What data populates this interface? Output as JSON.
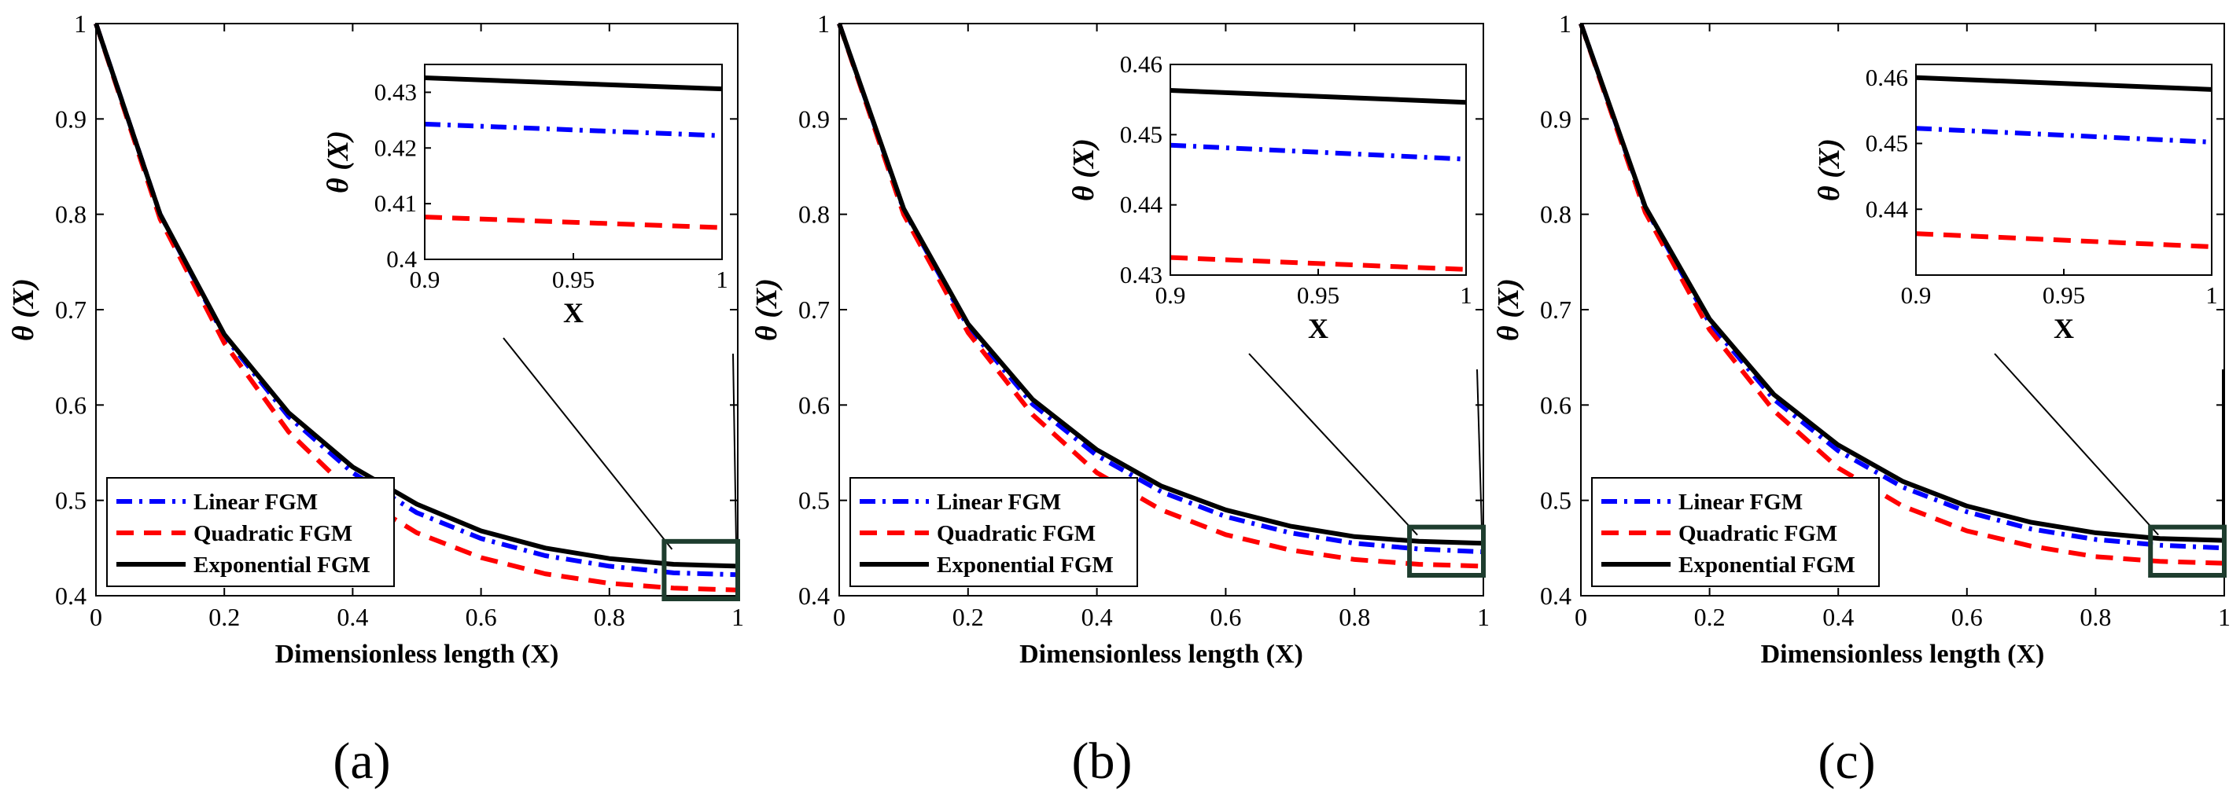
{
  "chart_data": [
    {
      "panel": "(a)",
      "type": "line",
      "xlabel": "Dimensionless length (X)",
      "ylabel": "θ (X)",
      "xlim": [
        0,
        1
      ],
      "ylim": [
        0.4,
        1
      ],
      "xticks": [
        "0",
        "0.2",
        "0.4",
        "0.6",
        "0.8",
        "1"
      ],
      "yticks": [
        "0.4",
        "0.5",
        "0.6",
        "0.7",
        "0.8",
        "0.9",
        "1"
      ],
      "x": [
        0,
        0.1,
        0.2,
        0.3,
        0.4,
        0.5,
        0.6,
        0.7,
        0.8,
        0.9,
        1.0
      ],
      "series": [
        {
          "name": "Linear FGM",
          "color": "#0000ff",
          "style": "dash-dot",
          "values": [
            1.0,
            0.8,
            0.672,
            0.588,
            0.529,
            0.487,
            0.46,
            0.442,
            0.431,
            0.424,
            0.422
          ]
        },
        {
          "name": "Quadratic FGM",
          "color": "#ff0000",
          "style": "dashed",
          "values": [
            1.0,
            0.795,
            0.665,
            0.572,
            0.507,
            0.466,
            0.44,
            0.423,
            0.413,
            0.408,
            0.406
          ]
        },
        {
          "name": "Exponential FGM",
          "color": "#000000",
          "style": "solid",
          "values": [
            1.0,
            0.8,
            0.674,
            0.592,
            0.535,
            0.496,
            0.468,
            0.45,
            0.439,
            0.433,
            0.431
          ]
        }
      ],
      "legend": "lower-left",
      "inset": {
        "xlim": [
          0.9,
          1
        ],
        "ylim": [
          0.4,
          0.435
        ],
        "xticks": [
          "0.9",
          "0.95",
          "1"
        ],
        "yticks": [
          "0.4",
          "0.41",
          "0.42",
          "0.43"
        ],
        "xlabel": "X",
        "ylabel": "θ (X)",
        "x": [
          0.9,
          1.0
        ],
        "values": [
          [
            0.4243,
            0.4222
          ],
          [
            0.4076,
            0.4057
          ],
          [
            0.4326,
            0.4306
          ]
        ]
      }
    },
    {
      "panel": "(b)",
      "type": "line",
      "xlabel": "Dimensionless length (X)",
      "ylabel": "θ (X)",
      "xlim": [
        0,
        1
      ],
      "ylim": [
        0.4,
        1
      ],
      "xticks": [
        "0",
        "0.2",
        "0.4",
        "0.6",
        "0.8",
        "1"
      ],
      "yticks": [
        "0.4",
        "0.5",
        "0.6",
        "0.7",
        "0.8",
        "0.9",
        "1"
      ],
      "x": [
        0,
        0.1,
        0.2,
        0.3,
        0.4,
        0.5,
        0.6,
        0.7,
        0.8,
        0.9,
        1.0
      ],
      "series": [
        {
          "name": "Linear FGM",
          "color": "#0000ff",
          "style": "dash-dot",
          "values": [
            1.0,
            0.805,
            0.682,
            0.601,
            0.547,
            0.509,
            0.483,
            0.466,
            0.455,
            0.449,
            0.446
          ]
        },
        {
          "name": "Quadratic FGM",
          "color": "#ff0000",
          "style": "dashed",
          "values": [
            1.0,
            0.8,
            0.676,
            0.59,
            0.529,
            0.49,
            0.464,
            0.448,
            0.438,
            0.433,
            0.431
          ]
        },
        {
          "name": "Exponential FGM",
          "color": "#000000",
          "style": "solid",
          "values": [
            1.0,
            0.806,
            0.685,
            0.606,
            0.553,
            0.515,
            0.49,
            0.473,
            0.462,
            0.457,
            0.455
          ]
        }
      ],
      "legend": "lower-left",
      "inset": {
        "xlim": [
          0.9,
          1
        ],
        "ylim": [
          0.43,
          0.46
        ],
        "xticks": [
          "0.9",
          "0.95",
          "1"
        ],
        "yticks": [
          "0.43",
          "0.44",
          "0.45",
          "0.46"
        ],
        "xlabel": "X",
        "ylabel": "θ (X)",
        "x": [
          0.9,
          1.0
        ],
        "values": [
          [
            0.4485,
            0.4465
          ],
          [
            0.4325,
            0.4308
          ],
          [
            0.4563,
            0.4546
          ]
        ]
      }
    },
    {
      "panel": "(c)",
      "type": "line",
      "xlabel": "Dimensionless length (X)",
      "ylabel": "θ (X)",
      "xlim": [
        0,
        1
      ],
      "ylim": [
        0.4,
        1
      ],
      "xticks": [
        "0",
        "0.2",
        "0.4",
        "0.6",
        "0.8",
        "1"
      ],
      "yticks": [
        "0.4",
        "0.5",
        "0.6",
        "0.7",
        "0.8",
        "0.9",
        "1"
      ],
      "x": [
        0,
        0.1,
        0.2,
        0.3,
        0.4,
        0.5,
        0.6,
        0.7,
        0.8,
        0.9,
        1.0
      ],
      "series": [
        {
          "name": "Linear FGM",
          "color": "#0000ff",
          "style": "dash-dot",
          "values": [
            1.0,
            0.807,
            0.686,
            0.606,
            0.552,
            0.514,
            0.488,
            0.47,
            0.459,
            0.453,
            0.45
          ]
        },
        {
          "name": "Quadratic FGM",
          "color": "#ff0000",
          "style": "dashed",
          "values": [
            1.0,
            0.802,
            0.679,
            0.594,
            0.534,
            0.494,
            0.468,
            0.452,
            0.441,
            0.436,
            0.434
          ]
        },
        {
          "name": "Exponential FGM",
          "color": "#000000",
          "style": "solid",
          "values": [
            1.0,
            0.808,
            0.69,
            0.611,
            0.558,
            0.52,
            0.494,
            0.477,
            0.466,
            0.46,
            0.458
          ]
        }
      ],
      "legend": "lower-left",
      "inset": {
        "xlim": [
          0.9,
          1
        ],
        "ylim": [
          0.43,
          0.462
        ],
        "xticks": [
          "0.9",
          "0.95",
          "1"
        ],
        "yticks": [
          "0.44",
          "0.45",
          "0.46"
        ],
        "xlabel": "X",
        "ylabel": "θ (X)",
        "x": [
          0.9,
          1.0
        ],
        "values": [
          [
            0.4523,
            0.4502
          ],
          [
            0.4363,
            0.4343
          ],
          [
            0.46,
            0.4582
          ]
        ]
      }
    }
  ]
}
